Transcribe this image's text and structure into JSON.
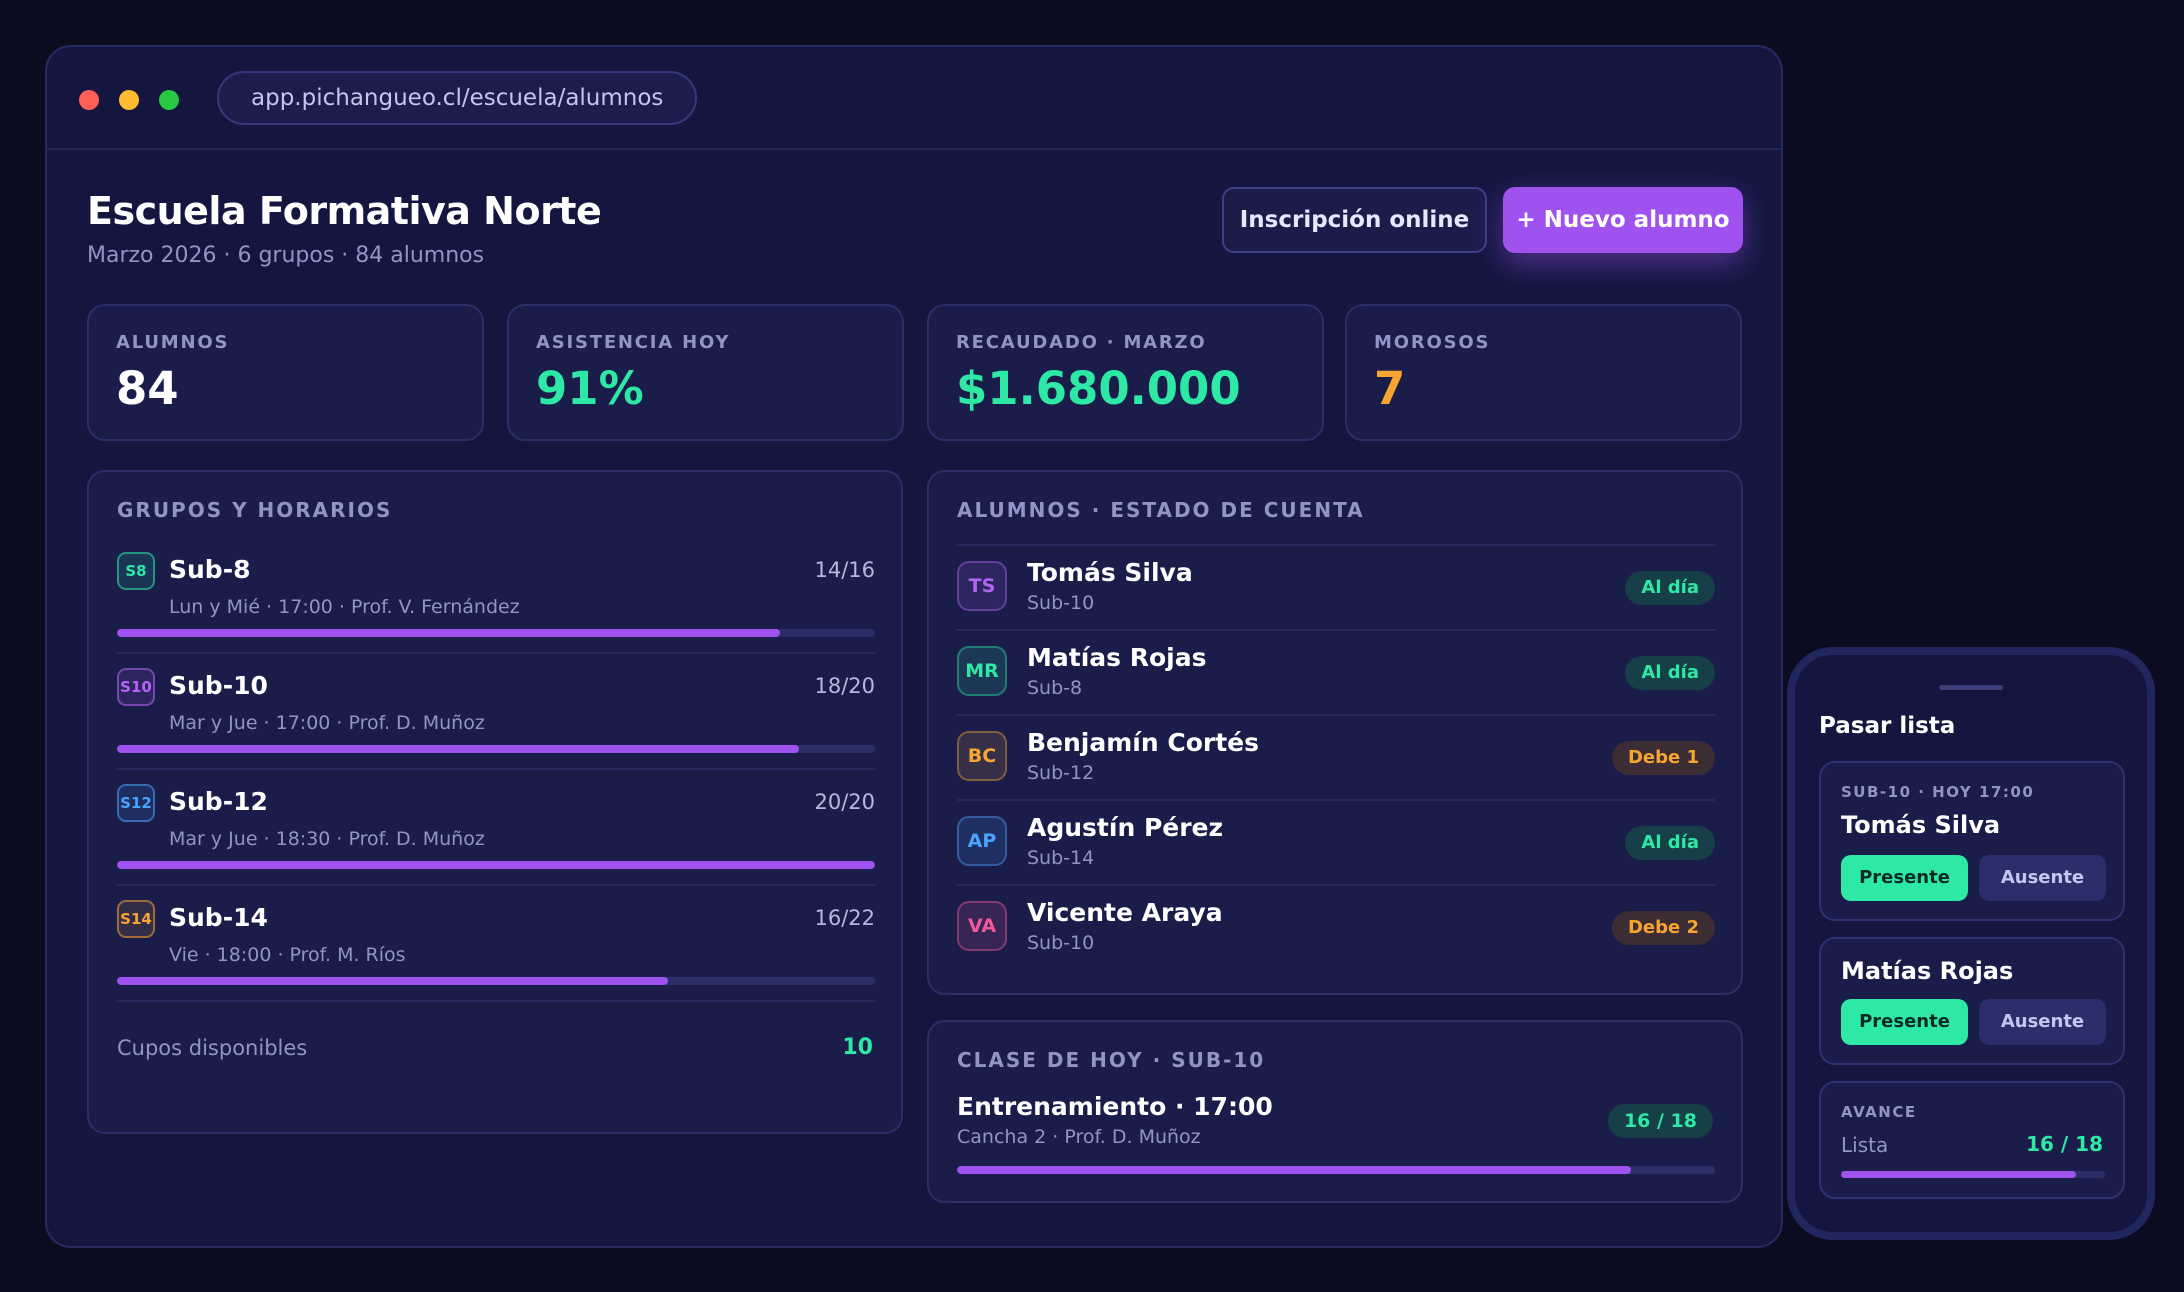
{
  "browser": {
    "url": "app.pichangueo.cl/escuela/alumnos"
  },
  "header": {
    "title": "Escuela Formativa Norte",
    "subtitle": "Marzo 2026 · 6 grupos · 84 alumnos",
    "online_button": "Inscripción online",
    "new_button": "+ Nuevo alumno"
  },
  "stats": [
    {
      "label": "ALUMNOS",
      "value": "84",
      "color": "#ffffff"
    },
    {
      "label": "ASISTENCIA HOY",
      "value": "91%",
      "color": "#2ee8a5"
    },
    {
      "label": "RECAUDADO · MARZO",
      "value": "$1.680.000",
      "color": "#2ee8a5"
    },
    {
      "label": "MOROSOS",
      "value": "7",
      "color": "#f7a531"
    }
  ],
  "groups_panel": {
    "title": "GRUPOS Y HORARIOS",
    "groups": [
      {
        "badge": "S8",
        "badge_color": "#2ee8a5",
        "name": "Sub-8",
        "count": "14/16",
        "enrolled": 14,
        "capacity": 16,
        "schedule": "Lun y Mié · 17:00 · Prof. V. Fernández"
      },
      {
        "badge": "S10",
        "badge_color": "#b565f5",
        "name": "Sub-10",
        "count": "18/20",
        "enrolled": 18,
        "capacity": 20,
        "schedule": "Mar y Jue · 17:00 · Prof. D. Muñoz"
      },
      {
        "badge": "S12",
        "badge_color": "#4aa3ff",
        "name": "Sub-12",
        "count": "20/20",
        "enrolled": 20,
        "capacity": 20,
        "schedule": "Mar y Jue · 18:30 · Prof. D. Muñoz"
      },
      {
        "badge": "S14",
        "badge_color": "#f7a531",
        "name": "Sub-14",
        "count": "16/22",
        "enrolled": 16,
        "capacity": 22,
        "schedule": "Vie · 18:00 · Prof. M. Ríos"
      }
    ],
    "cupos_label": "Cupos disponibles",
    "cupos_value": "10"
  },
  "students_panel": {
    "title": "ALUMNOS · ESTADO DE CUENTA",
    "students": [
      {
        "initials": "TS",
        "color": "#b565f5",
        "name": "Tomás Silva",
        "group": "Sub-10",
        "status": "Al día",
        "status_type": "ok"
      },
      {
        "initials": "MR",
        "color": "#2ee8a5",
        "name": "Matías Rojas",
        "group": "Sub-8",
        "status": "Al día",
        "status_type": "ok"
      },
      {
        "initials": "BC",
        "color": "#f7a531",
        "name": "Benjamín Cortés",
        "group": "Sub-12",
        "status": "Debe 1",
        "status_type": "owe"
      },
      {
        "initials": "AP",
        "color": "#4aa3ff",
        "name": "Agustín Pérez",
        "group": "Sub-14",
        "status": "Al día",
        "status_type": "ok"
      },
      {
        "initials": "VA",
        "color": "#f2589a",
        "name": "Vicente Araya",
        "group": "Sub-10",
        "status": "Debe 2",
        "status_type": "owe"
      }
    ]
  },
  "class_panel": {
    "title": "CLASE DE HOY · SUB-10",
    "class_title": "Entrenamiento · 17:00",
    "class_sub": "Cancha 2 · Prof. D. Muñoz",
    "count": "16 / 18",
    "present": 16,
    "total": 18
  },
  "phone": {
    "title": "Pasar lista",
    "card1": {
      "meta": "SUB-10 · HOY 17:00",
      "name": "Tomás Silva",
      "present": "Presente",
      "absent": "Ausente"
    },
    "card2": {
      "name": "Matías Rojas",
      "present": "Presente",
      "absent": "Ausente"
    },
    "card3": {
      "meta": "AVANCE",
      "label": "Lista",
      "value": "16 / 18",
      "present": 16,
      "total": 18
    }
  }
}
